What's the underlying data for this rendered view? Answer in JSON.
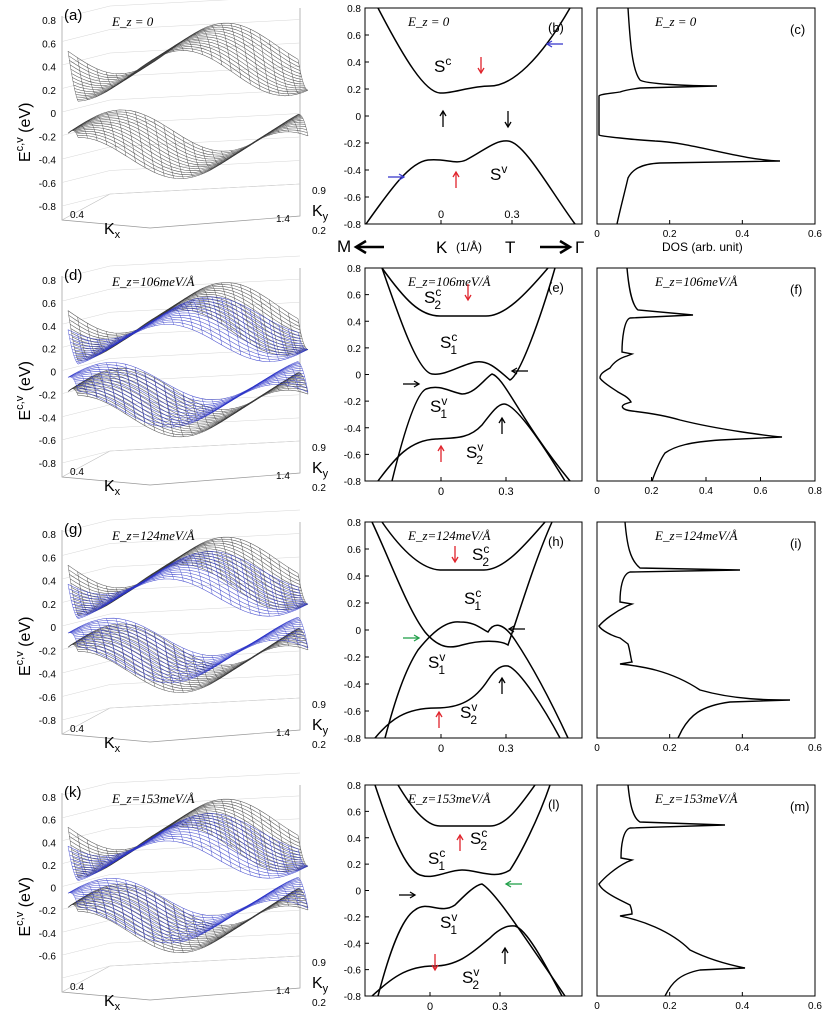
{
  "figure": {
    "rows": [
      {
        "surface": {
          "label": "(a)",
          "field": "E_z = 0",
          "kx_ticks": [
            "0.4",
            "1.4"
          ],
          "ky_ticks": [
            "0.9",
            "0.2"
          ],
          "y_ticks": [
            "0.8",
            "0.6",
            "0.4",
            "0.2",
            "0",
            "-0.2",
            "-0.4",
            "-0.6",
            "-0.8"
          ],
          "has_blue": false
        },
        "band": {
          "label": "(b)",
          "field": "E_z = 0",
          "y_ticks": [
            "0.8",
            "0.6",
            "0.4",
            "0.2",
            "0",
            "-0.2",
            "-0.4",
            "-0.6",
            "-0.8"
          ],
          "x_ticks": [
            "0",
            "0.3"
          ],
          "names": [
            "S^c",
            "S^v"
          ]
        },
        "dos": {
          "label": "(c)",
          "field": "E_z = 0",
          "x_ticks": [
            "0",
            "0.2",
            "0.4",
            "0.6"
          ]
        }
      },
      {
        "surface": {
          "label": "(d)",
          "field": "E_z=106meV/Å",
          "kx_ticks": [
            "0.4",
            "1.4"
          ],
          "ky_ticks": [
            "0.9",
            "0.2"
          ],
          "y_ticks": [
            "0.8",
            "0.6",
            "0.4",
            "0.2",
            "0",
            "-0.2",
            "-0.4",
            "-0.6",
            "-0.8"
          ],
          "has_blue": true
        },
        "band": {
          "label": "(e)",
          "field": "E_z=106meV/Å",
          "y_ticks": [
            "0.8",
            "0.6",
            "0.4",
            "0.2",
            "0",
            "-0.2",
            "-0.4",
            "-0.6",
            "-0.8"
          ],
          "x_ticks": [
            "0",
            "0.3"
          ],
          "names": [
            "S_2^c",
            "S_1^c",
            "S_1^v",
            "S_2^v"
          ]
        },
        "dos": {
          "label": "(f)",
          "field": "E_z=106meV/Å",
          "x_ticks": [
            "0",
            "0.2",
            "0.4",
            "0.6",
            "0.8"
          ]
        }
      },
      {
        "surface": {
          "label": "(g)",
          "field": "E_z=124meV/Å",
          "kx_ticks": [
            "0.4",
            "1.4"
          ],
          "ky_ticks": [
            "0.9",
            "0.2"
          ],
          "y_ticks": [
            "0.8",
            "0.6",
            "0.4",
            "0.2",
            "0",
            "-0.2",
            "-0.4",
            "-0.6",
            "-0.8"
          ],
          "has_blue": true
        },
        "band": {
          "label": "(h)",
          "field": "E_z=124meV/Å",
          "y_ticks": [
            "0.8",
            "0.6",
            "0.4",
            "0.2",
            "0",
            "-0.2",
            "-0.4",
            "-0.6",
            "-0.8"
          ],
          "x_ticks": [
            "0",
            "0.3"
          ],
          "names": [
            "S_2^c",
            "S_1^c",
            "S_1^v",
            "S_2^v"
          ]
        },
        "dos": {
          "label": "(i)",
          "field": "E_z=124meV/Å",
          "x_ticks": [
            "0",
            "0.2",
            "0.4",
            "0.6"
          ]
        }
      },
      {
        "surface": {
          "label": "(k)",
          "field": "E_z=153meV/Å",
          "kx_ticks": [
            "0.4",
            "1.4"
          ],
          "ky_ticks": [
            "0.9",
            "0.2"
          ],
          "y_ticks": [
            "0.8",
            "0.6",
            "0.4",
            "0.2",
            "0",
            "-0.2",
            "-0.4",
            "-0.6"
          ],
          "has_blue": true
        },
        "band": {
          "label": "(l)",
          "field": "E_z=153meV/Å",
          "y_ticks": [
            "0.8",
            "0.6",
            "0.4",
            "0.2",
            "0",
            "-0.2",
            "-0.4",
            "-0.6",
            "-0.8"
          ],
          "x_ticks": [
            "0",
            "0.3"
          ],
          "names": [
            "S_2^c",
            "S_1^c",
            "S_1^v",
            "S_2^v"
          ]
        },
        "dos": {
          "label": "(m)",
          "field": "E_z=153meV/Å",
          "x_ticks": [
            "0",
            "0.2",
            "0.4",
            "0.6"
          ]
        }
      }
    ],
    "y_axis_label": "E^{c,v} (eV)",
    "kx_label": "K_x",
    "ky_label": "K_y",
    "path_labels": {
      "M": "M",
      "K": "K",
      "unit": "(1/Å)",
      "T": "T",
      "Gamma": "Γ"
    },
    "dos_label": "DOS (arb. unit)",
    "colors": {
      "mesh": "#3a3a3a",
      "blue": "#2b34c8",
      "red": "#e0242c",
      "green": "#22a04a",
      "arrow_blue": "#3a3acc"
    }
  }
}
